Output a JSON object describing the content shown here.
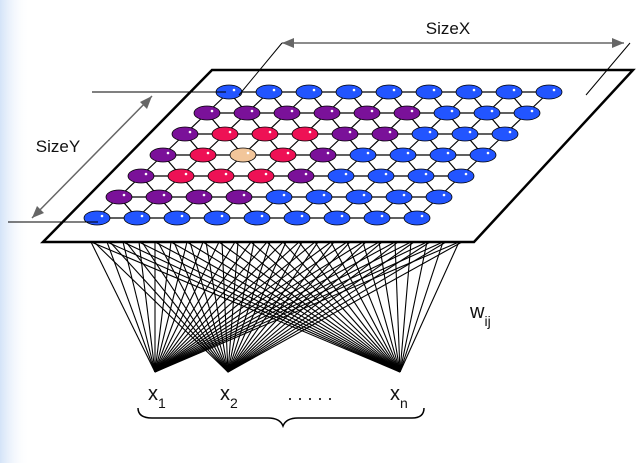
{
  "labels": {
    "size_x": "SizeX",
    "size_y": "SizeY",
    "weight_base": "w",
    "weight_sub": "ij",
    "x_base": "x",
    "inputs": [
      {
        "sub": "1"
      },
      {
        "sub": "2"
      },
      {
        "sub": "n"
      }
    ],
    "ellipsis": ". . . . ."
  },
  "colors": {
    "node_blue": "#2255ff",
    "node_purple": "#7a1199",
    "node_red": "#ee1155",
    "node_bmu": "#f2c69a",
    "edge": "#000000",
    "background_left_gradient": "#cfe0f7"
  },
  "map": {
    "rows": 7,
    "cols": 9,
    "node_colors": [
      [
        "blue",
        "blue",
        "blue",
        "blue",
        "blue",
        "blue",
        "blue",
        "blue",
        "blue"
      ],
      [
        "purple",
        "purple",
        "purple",
        "purple",
        "purple",
        "purple",
        "blue",
        "blue",
        "blue"
      ],
      [
        "purple",
        "red",
        "red",
        "red",
        "purple",
        "purple",
        "blue",
        "blue",
        "blue"
      ],
      [
        "purple",
        "red",
        "bmu",
        "red",
        "purple",
        "blue",
        "blue",
        "blue",
        "blue"
      ],
      [
        "purple",
        "red",
        "red",
        "red",
        "purple",
        "blue",
        "blue",
        "blue",
        "blue"
      ],
      [
        "purple",
        "purple",
        "purple",
        "purple",
        "blue",
        "blue",
        "blue",
        "blue",
        "blue"
      ],
      [
        "blue",
        "blue",
        "blue",
        "blue",
        "blue",
        "blue",
        "blue",
        "blue",
        "blue"
      ]
    ],
    "input_count_shown": 3
  }
}
